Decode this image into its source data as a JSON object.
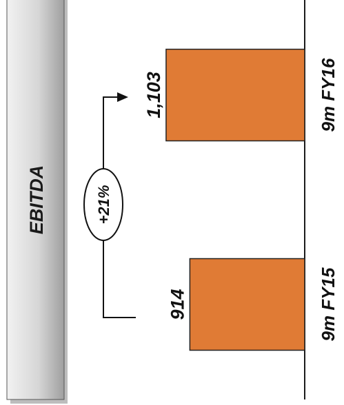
{
  "chart_data": {
    "type": "bar",
    "title": "EBITDA",
    "categories": [
      "9m FY15",
      "9m FY16"
    ],
    "values": [
      914,
      1103
    ],
    "value_labels": [
      "914",
      "1,103"
    ],
    "growth_label": "+21%",
    "orientation": "rotated-90",
    "grid": false,
    "legend": "none"
  },
  "colors": {
    "bar": "#E07B35",
    "bar_border": "#222222",
    "title_box_top": "#e6e6e6",
    "title_box_bottom": "#a9a9a9"
  }
}
